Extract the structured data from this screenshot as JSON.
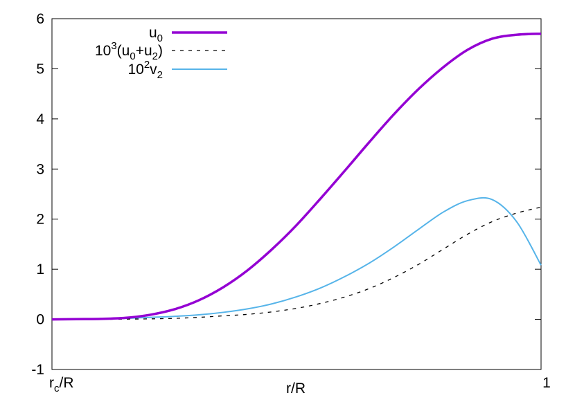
{
  "chart_data": {
    "type": "line",
    "title": "",
    "xlabel": "r/R",
    "ylabel": "",
    "xlim": [
      0,
      1
    ],
    "ylim": [
      -1,
      6
    ],
    "grid": false,
    "legend_position": "top-left",
    "x_ticks": [
      {
        "x": 0,
        "label": "r",
        "sub": "c",
        "suffix": "/R"
      },
      {
        "x": 1,
        "label": "1"
      }
    ],
    "y_ticks": [
      -1,
      0,
      1,
      2,
      3,
      4,
      5,
      6
    ],
    "x": [
      0,
      0.05,
      0.1,
      0.15,
      0.2,
      0.25,
      0.3,
      0.35,
      0.4,
      0.45,
      0.5,
      0.55,
      0.6,
      0.65,
      0.7,
      0.75,
      0.8,
      0.85,
      0.9,
      0.95,
      1.0
    ],
    "series": [
      {
        "key": "u0",
        "legend": {
          "base": "u",
          "sub": "0"
        },
        "color": "#9400d3",
        "style": "solid-thick",
        "values": [
          0,
          0.005,
          0.01,
          0.03,
          0.09,
          0.2,
          0.38,
          0.64,
          0.98,
          1.4,
          1.88,
          2.42,
          2.98,
          3.55,
          4.1,
          4.6,
          5.03,
          5.38,
          5.6,
          5.68,
          5.7
        ]
      },
      {
        "key": "u0u2",
        "legend": {
          "pre": "10",
          "pre_sup": "3",
          "open": "(u",
          "sub1": "0",
          "mid": "+u",
          "sub2": "2",
          "close": ")"
        },
        "color": "#000000",
        "style": "dashed",
        "values": [
          0,
          0.0,
          0.0,
          0.005,
          0.01,
          0.02,
          0.04,
          0.07,
          0.1,
          0.15,
          0.22,
          0.32,
          0.45,
          0.62,
          0.84,
          1.1,
          1.4,
          1.7,
          1.95,
          2.12,
          2.24
        ]
      },
      {
        "key": "v2",
        "legend": {
          "pre": "10",
          "pre_sup": "2",
          "base": "v",
          "sub": "2"
        },
        "color": "#56b4e9",
        "style": "solid",
        "values": [
          0,
          0.0,
          0.01,
          0.02,
          0.04,
          0.06,
          0.09,
          0.14,
          0.21,
          0.31,
          0.45,
          0.63,
          0.86,
          1.13,
          1.45,
          1.8,
          2.14,
          2.37,
          2.39,
          1.95,
          1.08
        ]
      }
    ]
  }
}
